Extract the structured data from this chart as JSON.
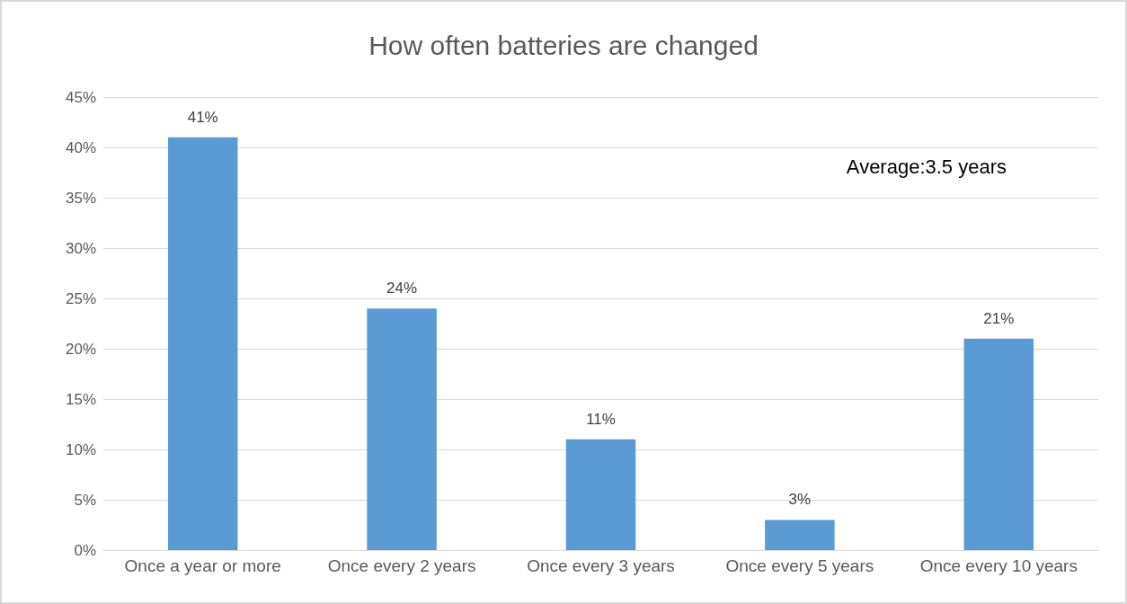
{
  "chart_data": {
    "type": "bar",
    "title": "How often batteries are changed",
    "categories": [
      "Once a year or more",
      "Once every 2 years",
      "Once every 3 years",
      "Once every 5 years",
      "Once every 10 years"
    ],
    "values": [
      41,
      24,
      11,
      3,
      21
    ],
    "value_labels": [
      "41%",
      "24%",
      "11%",
      "3%",
      "21%"
    ],
    "color": "#5b9bd5",
    "ylim": [
      0,
      45
    ],
    "yticks": [
      {
        "value": 0,
        "label": "0%"
      },
      {
        "value": 5,
        "label": "5%"
      },
      {
        "value": 10,
        "label": "10%"
      },
      {
        "value": 15,
        "label": "15%"
      },
      {
        "value": 20,
        "label": "20%"
      },
      {
        "value": 25,
        "label": "25%"
      },
      {
        "value": 30,
        "label": "30%"
      },
      {
        "value": 35,
        "label": "35%"
      },
      {
        "value": 40,
        "label": "40%"
      },
      {
        "value": 45,
        "label": "45%"
      }
    ],
    "grid": "y",
    "annotations": [
      "Average:3.5 years"
    ]
  }
}
